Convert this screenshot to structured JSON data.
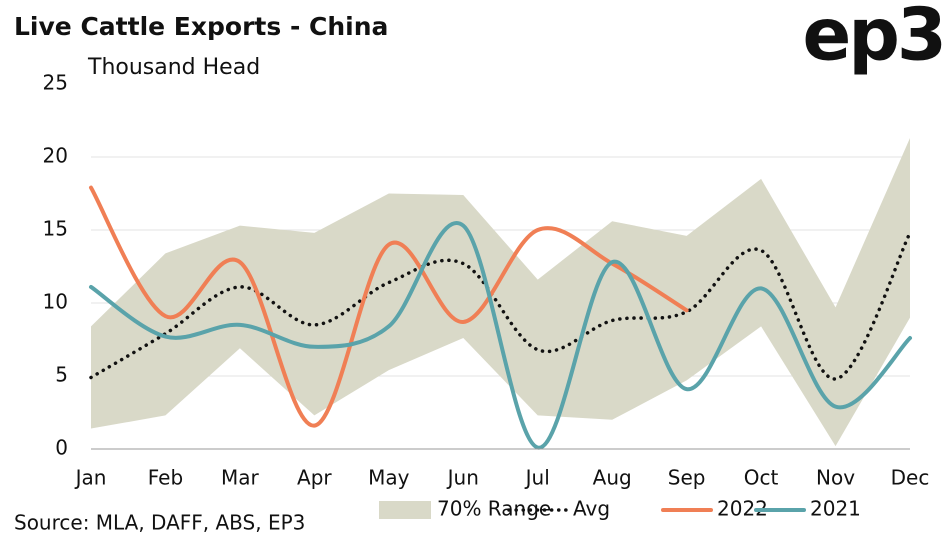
{
  "chart_data": {
    "type": "line",
    "title": "Live Cattle Exports - China",
    "subtitle": "Thousand Head",
    "source": "Source: MLA, DAFF, ABS, EP3",
    "logo": "ep3",
    "categories": [
      "Jan",
      "Feb",
      "Mar",
      "Apr",
      "May",
      "Jun",
      "Jul",
      "Aug",
      "Sep",
      "Oct",
      "Nov",
      "Dec"
    ],
    "ylim": [
      0,
      25
    ],
    "yticks": [
      0,
      5,
      10,
      15,
      20,
      25
    ],
    "grid": true,
    "legend": "bottom-right",
    "series": [
      {
        "name": "70% Range",
        "style": "band",
        "color": "#d9d9c8",
        "low": [
          1.4,
          2.3,
          6.9,
          2.3,
          5.4,
          7.6,
          2.3,
          2.0,
          4.7,
          8.4,
          0.2,
          9.0
        ],
        "high": [
          8.4,
          13.4,
          15.3,
          14.8,
          17.5,
          17.4,
          11.6,
          15.6,
          14.6,
          18.5,
          9.7,
          21.3
        ]
      },
      {
        "name": "Avg",
        "style": "dotted",
        "color": "#111111",
        "values": [
          4.9,
          7.9,
          11.1,
          8.5,
          11.4,
          12.7,
          6.8,
          8.8,
          9.4,
          13.6,
          4.8,
          14.8
        ]
      },
      {
        "name": "2022",
        "style": "solid",
        "color": "#f07f55",
        "values": [
          17.9,
          9.1,
          12.8,
          1.6,
          14.0,
          8.7,
          15.0,
          12.7,
          9.5,
          null,
          null,
          null
        ]
      },
      {
        "name": "2021",
        "style": "solid",
        "color": "#5aa3aa",
        "values": [
          11.1,
          7.7,
          8.5,
          7.0,
          8.4,
          15.3,
          0.1,
          12.8,
          4.1,
          11.0,
          2.9,
          7.6
        ]
      }
    ]
  }
}
